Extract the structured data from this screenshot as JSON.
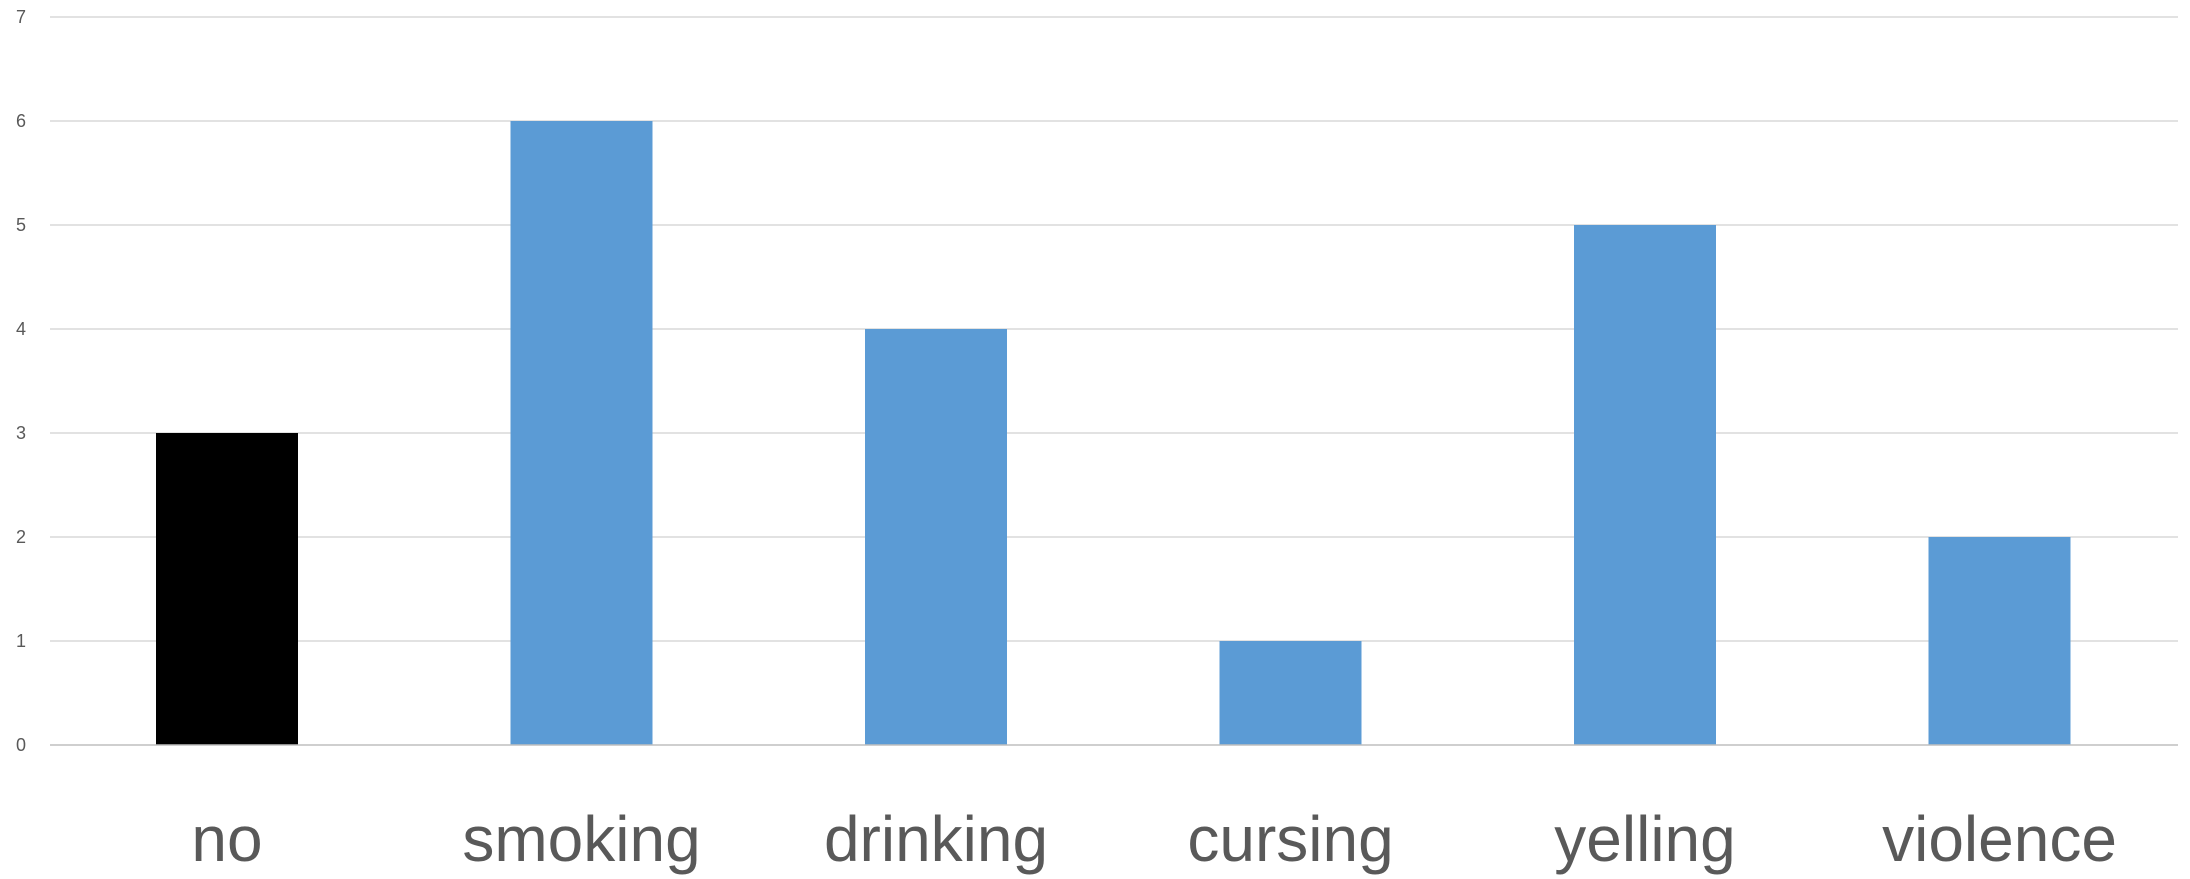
{
  "chart_data": {
    "type": "bar",
    "title": "",
    "xlabel": "",
    "ylabel": "",
    "categories": [
      "no",
      "smoking",
      "drinking",
      "cursing",
      "yelling",
      "violence"
    ],
    "values": [
      3,
      6,
      4,
      1,
      5,
      2
    ],
    "bar_colors": [
      "#000000",
      "#5b9bd5",
      "#5b9bd5",
      "#5b9bd5",
      "#5b9bd5",
      "#5b9bd5"
    ],
    "ylim": [
      0,
      7
    ],
    "yticks": [
      0,
      1,
      2,
      3,
      4,
      5,
      6,
      7
    ],
    "grid": true,
    "legend": "none",
    "gridline_color": "#d9d9d9",
    "label_color": "#595959"
  }
}
